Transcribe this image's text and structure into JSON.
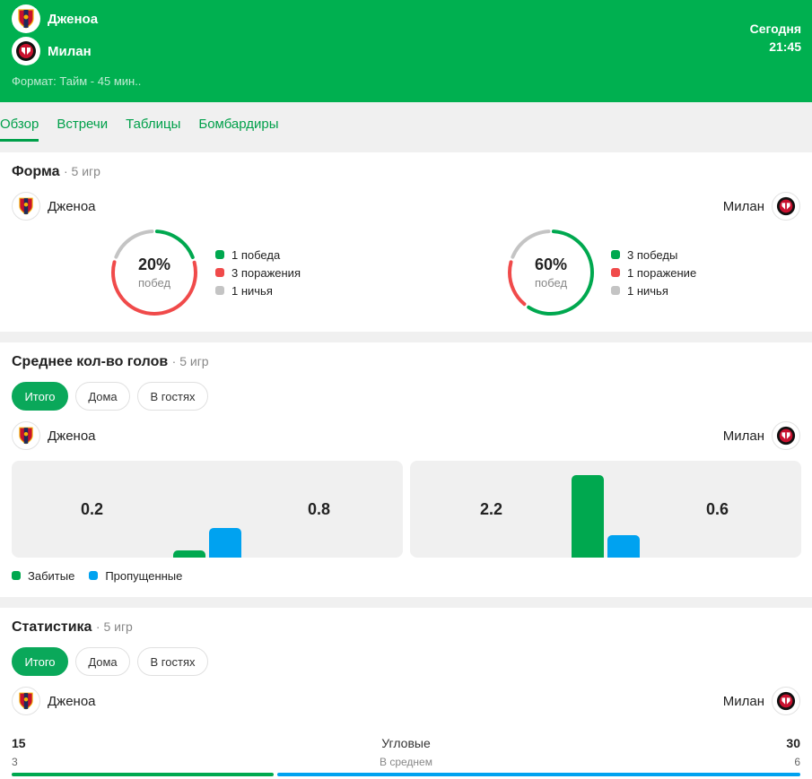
{
  "header": {
    "home_team": "Дженоа",
    "away_team": "Милан",
    "format": "Формат: Тайм - 45 мин..",
    "day": "Сегодня",
    "time": "21:45"
  },
  "tabs": [
    "Обзор",
    "Встречи",
    "Таблицы",
    "Бомбардиры"
  ],
  "form": {
    "title": "Форма",
    "subtitle": "· 5 игр",
    "home": {
      "team": "Дженоа",
      "pct": "20%",
      "pct_label": "побед",
      "wins": 1,
      "losses": 3,
      "draws": 1,
      "legend": [
        "1 победа",
        "3 поражения",
        "1 ничья"
      ]
    },
    "away": {
      "team": "Милан",
      "pct": "60%",
      "pct_label": "побед",
      "wins": 3,
      "losses": 1,
      "draws": 1,
      "legend": [
        "3 победы",
        "1 поражение",
        "1 ничья"
      ]
    },
    "colors": {
      "win": "#00a84f",
      "loss": "#f04a4a",
      "draw": "#c4c4c4"
    }
  },
  "goals": {
    "title": "Среднее кол-во голов",
    "subtitle": "· 5 игр",
    "filters": [
      "Итого",
      "Дома",
      "В гостях"
    ],
    "home_team": "Дженоа",
    "away_team": "Милан",
    "home": {
      "scored": 0.2,
      "conceded": 0.8,
      "scored_label": "0.2",
      "conceded_label": "0.8"
    },
    "away": {
      "scored": 2.2,
      "conceded": 0.6,
      "scored_label": "2.2",
      "conceded_label": "0.6"
    },
    "legend": [
      "Забитые",
      "Пропущенные"
    ],
    "colors": {
      "scored": "#00a84f",
      "conceded": "#00a2f0"
    }
  },
  "stats": {
    "title": "Статистика",
    "subtitle": "· 5 игр",
    "filters": [
      "Итого",
      "Дома",
      "В гостях"
    ],
    "home_team": "Дженоа",
    "away_team": "Милан",
    "corners": {
      "label": "Угловые",
      "avg_label": "В среднем",
      "home_total": "15",
      "away_total": "30",
      "home_avg": "3",
      "away_avg": "6"
    }
  }
}
